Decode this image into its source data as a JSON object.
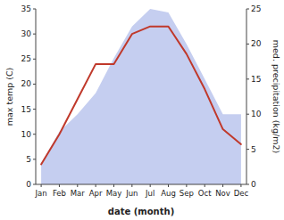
{
  "chart_data": {
    "type": "line",
    "categories": [
      "Jan",
      "Feb",
      "Mar",
      "Apr",
      "May",
      "Jun",
      "Jul",
      "Aug",
      "Sep",
      "Oct",
      "Nov",
      "Dec"
    ],
    "xlabel": "date (month)",
    "ylabel": "max temp (C)",
    "y2label": "med. precipitation (kg/m2)",
    "series": [
      {
        "type": "area",
        "axis": "y2",
        "color": "#c5cef0",
        "values": [
          3,
          7.5,
          10,
          13,
          18,
          22.5,
          25,
          24.5,
          20,
          15,
          10,
          10
        ]
      },
      {
        "type": "line",
        "color": "#c0392b",
        "values": [
          4,
          10,
          17,
          24,
          24,
          30,
          31.5,
          31.5,
          26,
          19,
          11,
          8
        ]
      }
    ],
    "ylim": [
      0,
      35
    ],
    "yticks": [
      0,
      5,
      10,
      15,
      20,
      25,
      30,
      35
    ],
    "y2lim": [
      0,
      25
    ],
    "y2ticks": [
      0,
      5,
      10,
      15,
      20,
      25
    ],
    "grid": false
  }
}
